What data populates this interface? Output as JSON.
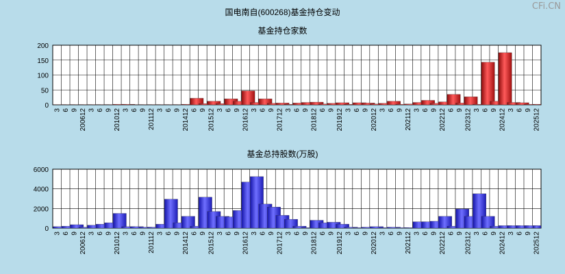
{
  "page": {
    "title": "国电南自(600268)基金持仓变动",
    "watermark": "CFi.CN"
  },
  "colors": {
    "background": "#b8dcea",
    "plot_bg": "#ffffff",
    "grid": "#000000",
    "bar_red": "#e02020",
    "bar_blue": "#3535ee"
  },
  "chart_data": [
    {
      "type": "bar",
      "title": "基金持仓家数",
      "ylim": [
        0,
        200
      ],
      "yticks": [
        0,
        50,
        100,
        150,
        200
      ],
      "categories": [
        "3",
        "6",
        "9",
        "200612",
        "3",
        "6",
        "9",
        "201012",
        "3",
        "6",
        "9",
        "201112",
        "3",
        "6",
        "9",
        "201412",
        "6",
        "9",
        "201512",
        "3",
        "6",
        "9",
        "201612",
        "3",
        "6",
        "9",
        "201712",
        "3",
        "6",
        "9",
        "201812",
        "6",
        "9",
        "201912",
        "3",
        "6",
        "9",
        "202012",
        "3",
        "6",
        "9",
        "202112",
        "3",
        "6",
        "9",
        "202212",
        "6",
        "9",
        "202312",
        "3",
        "6",
        "9",
        "202412",
        "3",
        "6",
        "9",
        "202512"
      ],
      "values": [
        1,
        1,
        1,
        1,
        1,
        1,
        1,
        2,
        2,
        1,
        1,
        1,
        1,
        1,
        1,
        2,
        22,
        4,
        12,
        4,
        20,
        12,
        47,
        8,
        20,
        5,
        6,
        2,
        6,
        8,
        9,
        3,
        5,
        7,
        2,
        7,
        6,
        3,
        5,
        12,
        2,
        3,
        8,
        15,
        5,
        10,
        35,
        6,
        27,
        2,
        143,
        12,
        175,
        8,
        7,
        2,
        2
      ]
    },
    {
      "type": "bar",
      "title": "基金总持股数(万股)",
      "ylim": [
        0,
        6000
      ],
      "yticks": [
        0,
        2000,
        4000,
        6000
      ],
      "categories": [
        "3",
        "6",
        "9",
        "200612",
        "3",
        "6",
        "9",
        "201012",
        "3",
        "6",
        "9",
        "201112",
        "3",
        "6",
        "9",
        "201412",
        "6",
        "9",
        "201512",
        "3",
        "6",
        "9",
        "201612",
        "3",
        "6",
        "9",
        "201712",
        "3",
        "6",
        "9",
        "201812",
        "6",
        "9",
        "201912",
        "3",
        "6",
        "9",
        "202012",
        "3",
        "6",
        "9",
        "202112",
        "3",
        "6",
        "9",
        "202212",
        "6",
        "9",
        "202312",
        "3",
        "6",
        "9",
        "202412",
        "3",
        "6",
        "9",
        "202512"
      ],
      "values": [
        150,
        200,
        350,
        100,
        300,
        400,
        550,
        1500,
        150,
        150,
        100,
        100,
        400,
        2950,
        550,
        1200,
        200,
        3150,
        1700,
        1200,
        1150,
        1800,
        4700,
        5250,
        2450,
        2150,
        1300,
        900,
        200,
        50,
        800,
        550,
        600,
        400,
        100,
        50,
        100,
        150,
        50,
        100,
        50,
        50,
        650,
        650,
        700,
        1200,
        200,
        1950,
        1200,
        3500,
        1200,
        200,
        250,
        250,
        250,
        250,
        250
      ]
    }
  ]
}
